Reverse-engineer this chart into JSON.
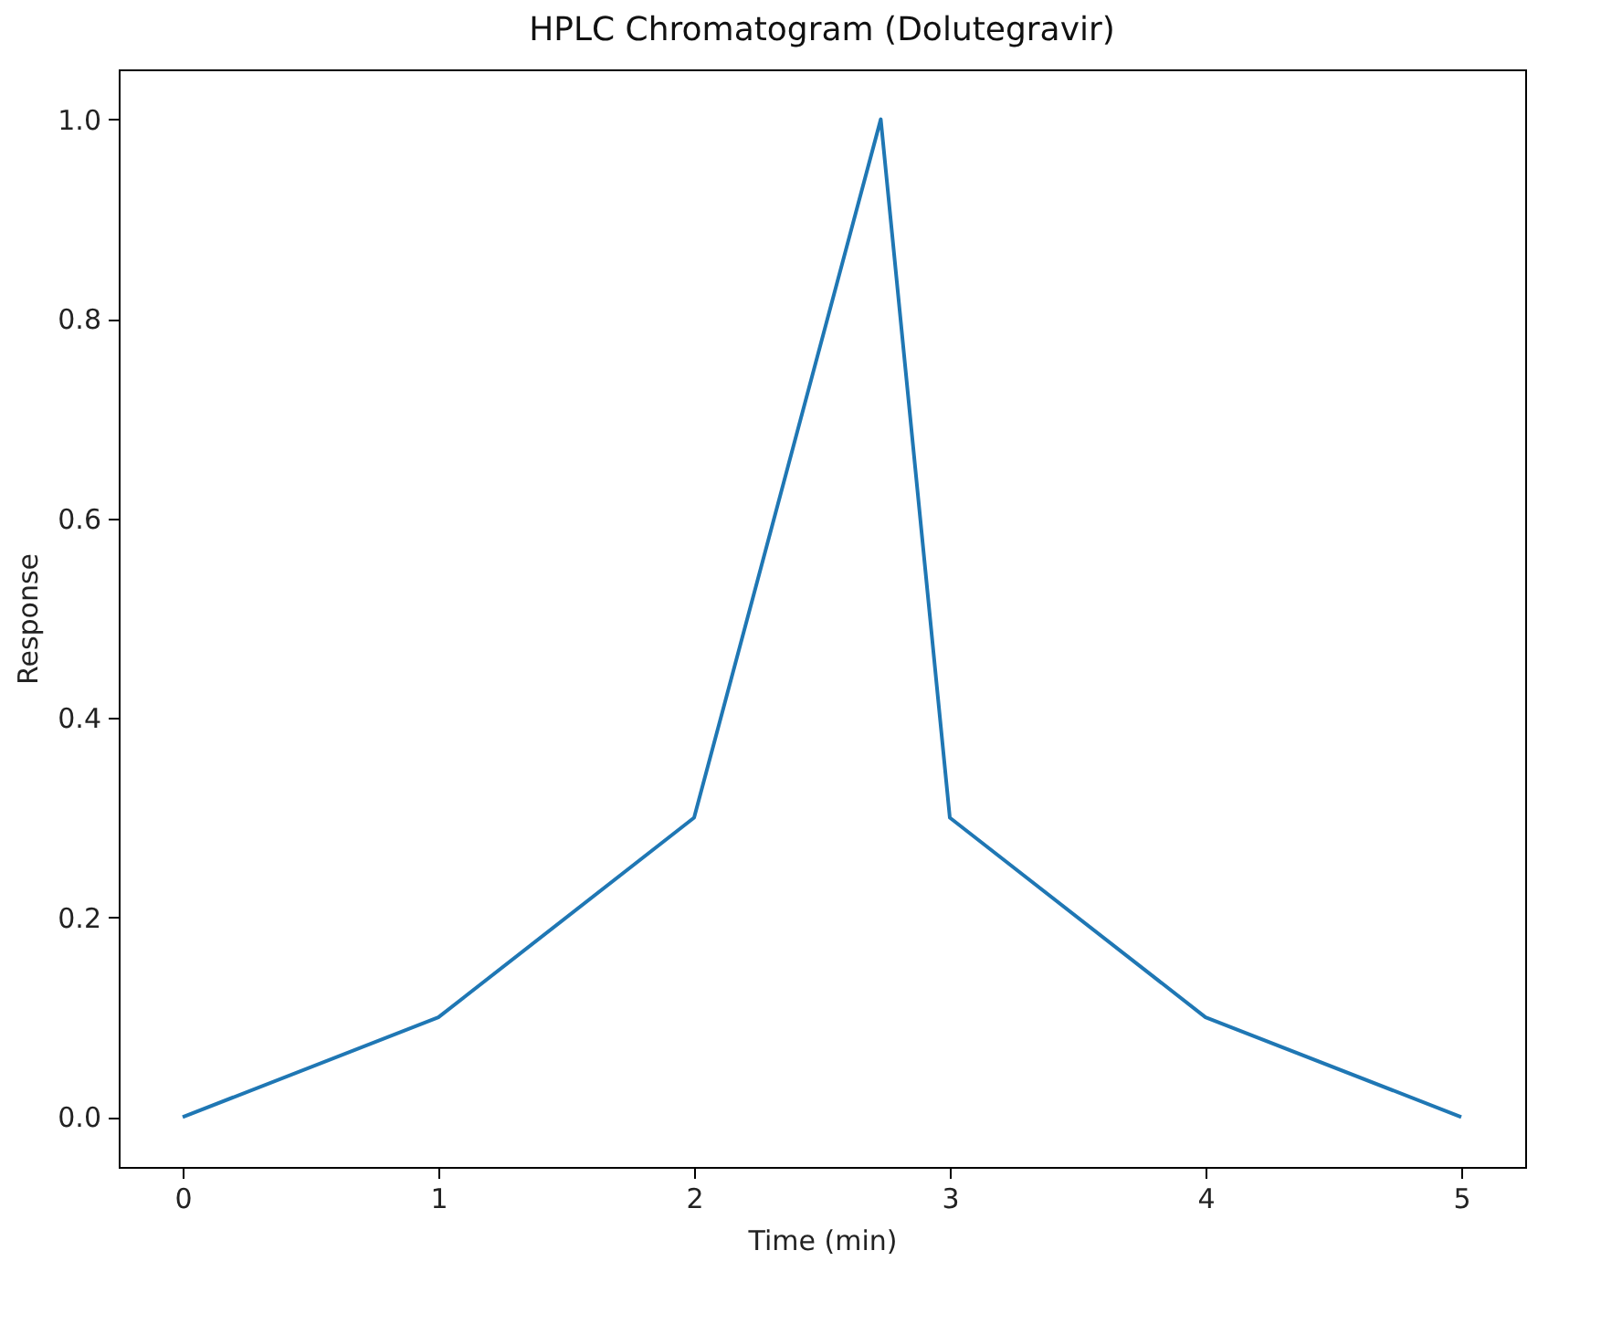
{
  "chart_data": {
    "type": "line",
    "title": "HPLC Chromatogram (Dolutegravir)",
    "xlabel": "Time (min)",
    "ylabel": "Response",
    "x": [
      0,
      1,
      2,
      2.73,
      3,
      4,
      5
    ],
    "series": [
      {
        "color": "#1f77b4",
        "values": [
          0,
          0.1,
          0.3,
          1.0,
          0.3,
          0.1,
          0
        ]
      }
    ],
    "xlim": [
      -0.25,
      5.25
    ],
    "ylim": [
      -0.05,
      1.05
    ],
    "xticks": [
      0,
      1,
      2,
      3,
      4,
      5
    ],
    "yticks": [
      {
        "value": 0,
        "label": "0.0"
      },
      {
        "value": 0.2,
        "label": "0.2"
      },
      {
        "value": 0.4,
        "label": "0.4"
      },
      {
        "value": 0.6,
        "label": "0.6"
      },
      {
        "value": 0.8,
        "label": "0.8"
      },
      {
        "value": 1,
        "label": "1.0"
      }
    ],
    "grid": false,
    "marker": "none",
    "line_style": "solid"
  }
}
